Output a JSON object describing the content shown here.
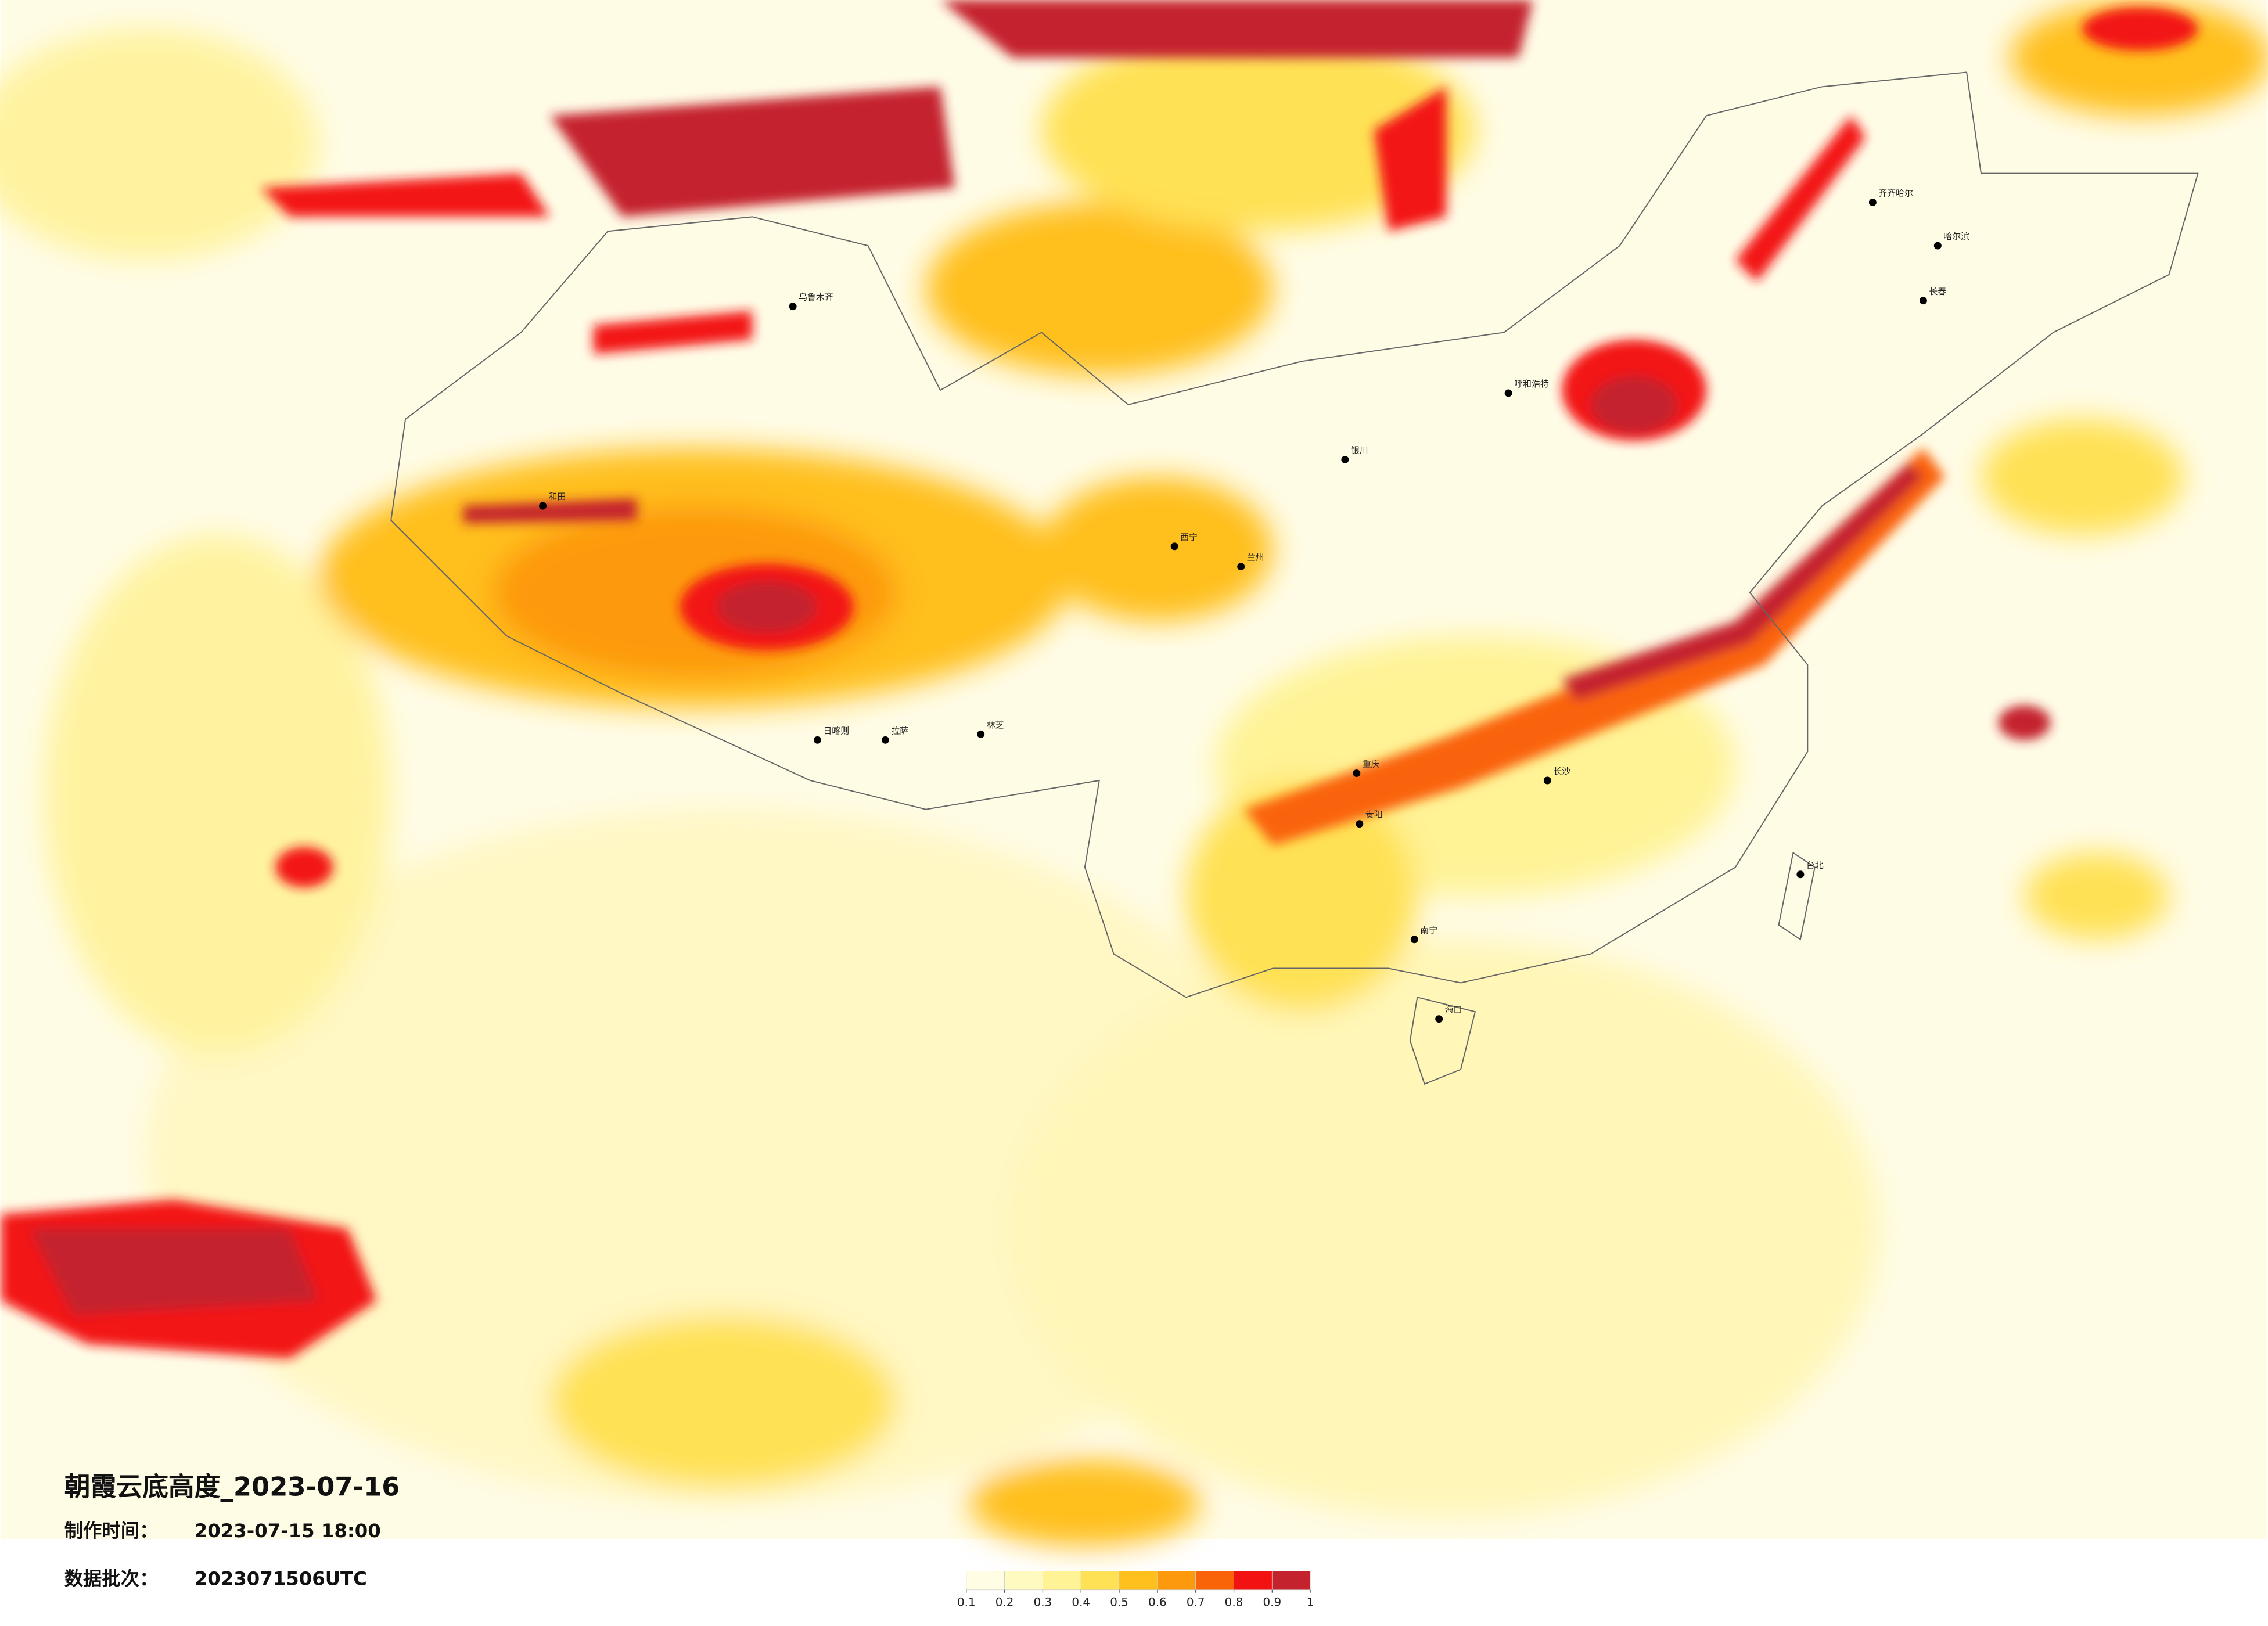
{
  "header": {
    "title": "朝霞云底高度_2023-07-16",
    "made_label": "制作时间：",
    "made_time": "2023-07-15 18:00",
    "batch_label": "数据批次：",
    "batch": "2023071506UTC"
  },
  "legend": {
    "ticks": [
      0.1,
      0.2,
      0.3,
      0.4,
      0.5,
      0.6,
      0.7,
      0.8,
      0.9,
      1
    ],
    "colors": [
      "#fffde4",
      "#fffac0",
      "#fff396",
      "#ffe155",
      "#ffbf1c",
      "#fd990c",
      "#fa6408",
      "#f31212",
      "#c4232e"
    ]
  },
  "cities": [
    "哈尔滨",
    "长春",
    "齐齐哈尔",
    "呼和浩特",
    "银川",
    "西宁",
    "兰州",
    "乌鲁木齐",
    "和田",
    "拉萨",
    "日喀则",
    "林芝",
    "重庆",
    "贵阳",
    "南宁",
    "海口",
    "台北",
    "长沙"
  ]
}
